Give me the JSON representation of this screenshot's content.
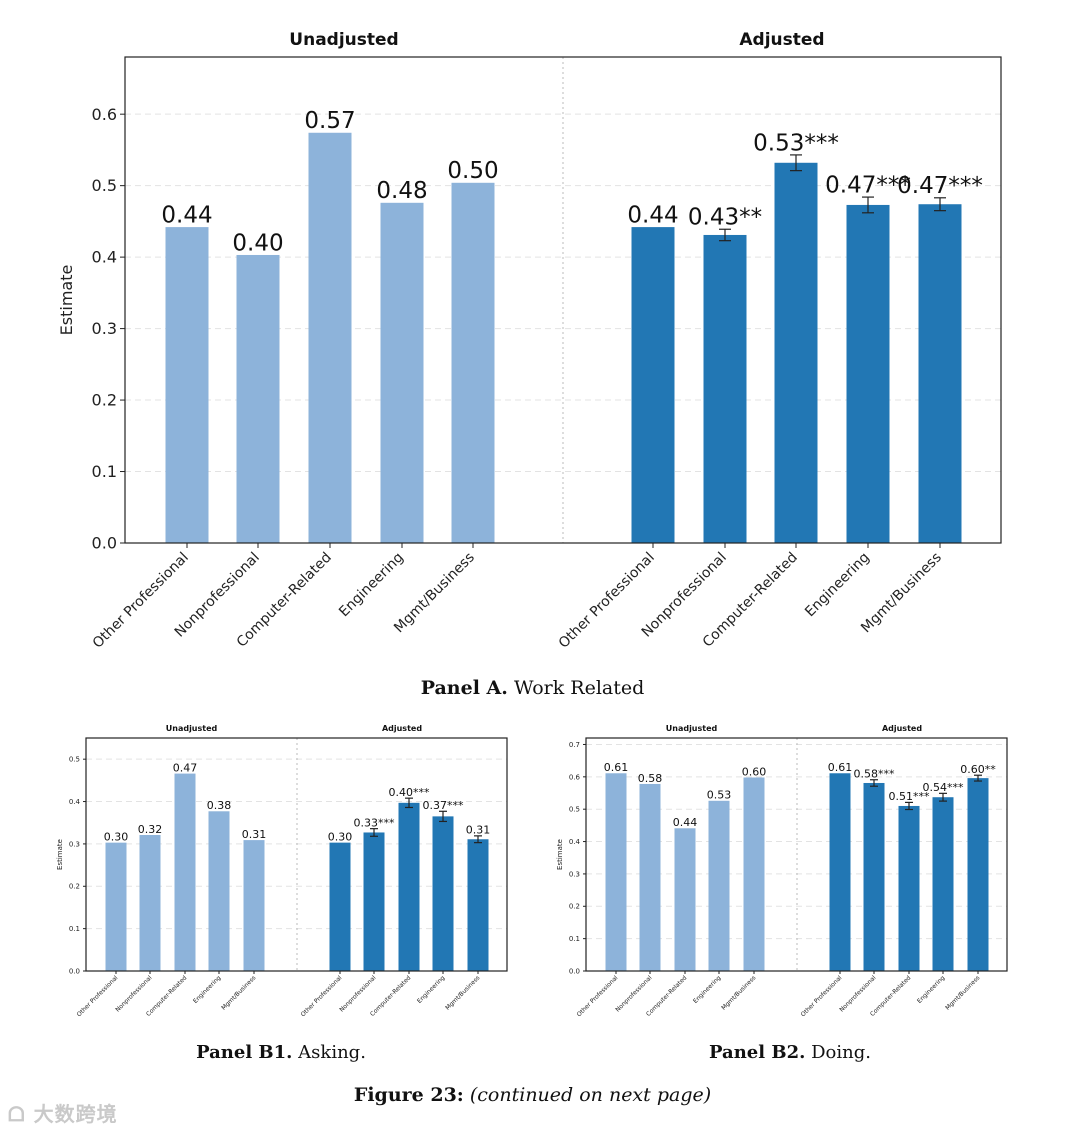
{
  "captions": {
    "panel_a_label": "Panel A.",
    "panel_a_text": "Work Related",
    "panel_b1_label": "Panel B1.",
    "panel_b1_text": "Asking.",
    "panel_b2_label": "Panel B2.",
    "panel_b2_text": "Doing.",
    "figure_label": "Figure 23:",
    "figure_text": "(continued on next page)"
  },
  "watermark": "大数跨境",
  "colors": {
    "unadjusted": "#8db3da",
    "adjusted": "#2277b4"
  },
  "chart_data": [
    {
      "id": "panel-a",
      "type": "bar",
      "title_left": "Unadjusted",
      "title_right": "Adjusted",
      "ylabel": "Estimate",
      "ylim": [
        0,
        0.68
      ],
      "yticks": [
        "0.0",
        "0.1",
        "0.2",
        "0.3",
        "0.4",
        "0.5",
        "0.6"
      ],
      "categories": [
        "Other Professional",
        "Nonprofessional",
        "Computer-Related",
        "Engineering",
        "Mgmt/Business"
      ],
      "series": [
        {
          "name": "Unadjusted",
          "values": [
            0.442,
            0.403,
            0.574,
            0.476,
            0.504
          ],
          "labels": [
            "0.44",
            "0.40",
            "0.57",
            "0.48",
            "0.50"
          ]
        },
        {
          "name": "Adjusted",
          "values": [
            0.442,
            0.431,
            0.532,
            0.473,
            0.474
          ],
          "errors": [
            0,
            0.008,
            0.011,
            0.011,
            0.009
          ],
          "labels": [
            "0.44",
            "0.43**",
            "0.53***",
            "0.47***",
            "0.47***"
          ]
        }
      ]
    },
    {
      "id": "panel-b1",
      "type": "bar",
      "title_left": "Unadjusted",
      "title_right": "Adjusted",
      "ylabel": "Estimate",
      "ylim": [
        0,
        0.55
      ],
      "yticks": [
        "0.0",
        "0.1",
        "0.2",
        "0.3",
        "0.4",
        "0.5"
      ],
      "categories": [
        "Other Professional",
        "Nonprofessional",
        "Computer-Related",
        "Engineering",
        "Mgmt/Business"
      ],
      "series": [
        {
          "name": "Unadjusted",
          "values": [
            0.303,
            0.321,
            0.466,
            0.377,
            0.309
          ],
          "labels": [
            "0.30",
            "0.32",
            "0.47",
            "0.38",
            "0.31"
          ]
        },
        {
          "name": "Adjusted",
          "values": [
            0.303,
            0.327,
            0.397,
            0.365,
            0.311
          ],
          "errors": [
            0,
            0.009,
            0.011,
            0.012,
            0.008
          ],
          "labels": [
            "0.30",
            "0.33***",
            "0.40***",
            "0.37***",
            "0.31"
          ]
        }
      ]
    },
    {
      "id": "panel-b2",
      "type": "bar",
      "title_left": "Unadjusted",
      "title_right": "Adjusted",
      "ylabel": "Estimate",
      "ylim": [
        0,
        0.72
      ],
      "yticks": [
        "0.0",
        "0.1",
        "0.2",
        "0.3",
        "0.4",
        "0.5",
        "0.6",
        "0.7"
      ],
      "categories": [
        "Other Professional",
        "Nonprofessional",
        "Computer-Related",
        "Engineering",
        "Mgmt/Business"
      ],
      "series": [
        {
          "name": "Unadjusted",
          "values": [
            0.611,
            0.578,
            0.441,
            0.526,
            0.598
          ],
          "labels": [
            "0.61",
            "0.58",
            "0.44",
            "0.53",
            "0.60"
          ]
        },
        {
          "name": "Adjusted",
          "values": [
            0.611,
            0.581,
            0.51,
            0.537,
            0.596
          ],
          "errors": [
            0,
            0.01,
            0.011,
            0.012,
            0.009
          ],
          "labels": [
            "0.61",
            "0.58***",
            "0.51***",
            "0.54***",
            "0.60**"
          ]
        }
      ]
    }
  ]
}
